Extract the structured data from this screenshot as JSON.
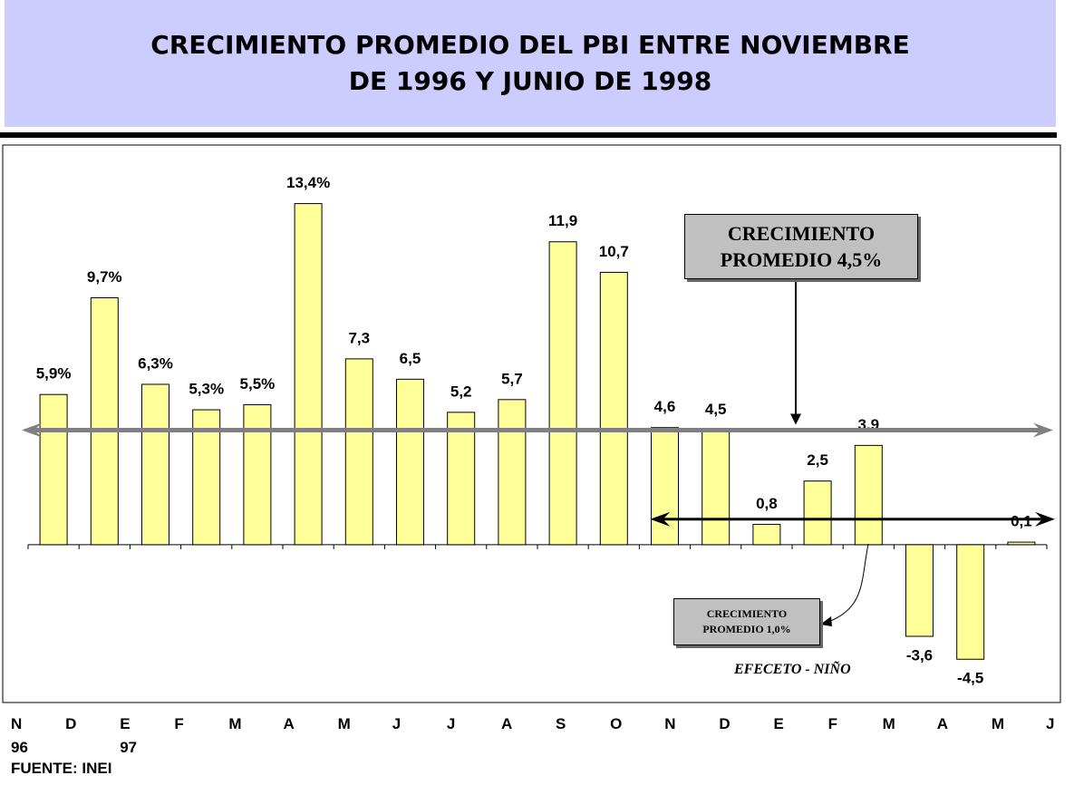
{
  "chart_data": {
    "type": "bar",
    "title": "CRECIMIENTO PROMEDIO DEL PBI ENTRE NOVIEMBRE\nDE 1996 Y  JUNIO DE  1998",
    "categories": [
      "N\n96",
      "D",
      "E\n97",
      "F",
      "M",
      "A",
      "M",
      "J",
      "J",
      "A",
      "S",
      "O",
      "N",
      "D",
      "E",
      "F",
      "M",
      "A",
      "M",
      "J"
    ],
    "values": [
      5.9,
      9.7,
      6.3,
      5.3,
      5.5,
      13.4,
      7.3,
      6.5,
      5.2,
      5.7,
      11.9,
      10.7,
      4.6,
      4.5,
      0.8,
      2.5,
      3.9,
      -3.6,
      -4.5,
      0.1
    ],
    "value_labels": [
      "5,9%",
      "9,7%",
      "6,3%",
      "5,3%",
      "5,5%",
      "13,4%",
      "7,3",
      "6,5",
      "5,2",
      "5,7",
      "11,9",
      "10,7",
      "4,6",
      "4,5",
      "0,8",
      "2,5",
      "3,9",
      "-3,6",
      "-4,5",
      "0,1"
    ],
    "color": "#ffff99",
    "ylim": [
      -6.2,
      15.7
    ],
    "grid": false,
    "reference_lines": [
      {
        "value": 4.5,
        "label": "CRECIMIENTO\nPROMEDIO 4,5%",
        "color": "#808080"
      },
      {
        "value": 1.0,
        "label": "CRECIMIENTO\nPROMEDIO 1,0%",
        "color": "#000000"
      }
    ],
    "annotation": "EFECETO - NIÑO",
    "source": "FUENTE: INEI"
  }
}
